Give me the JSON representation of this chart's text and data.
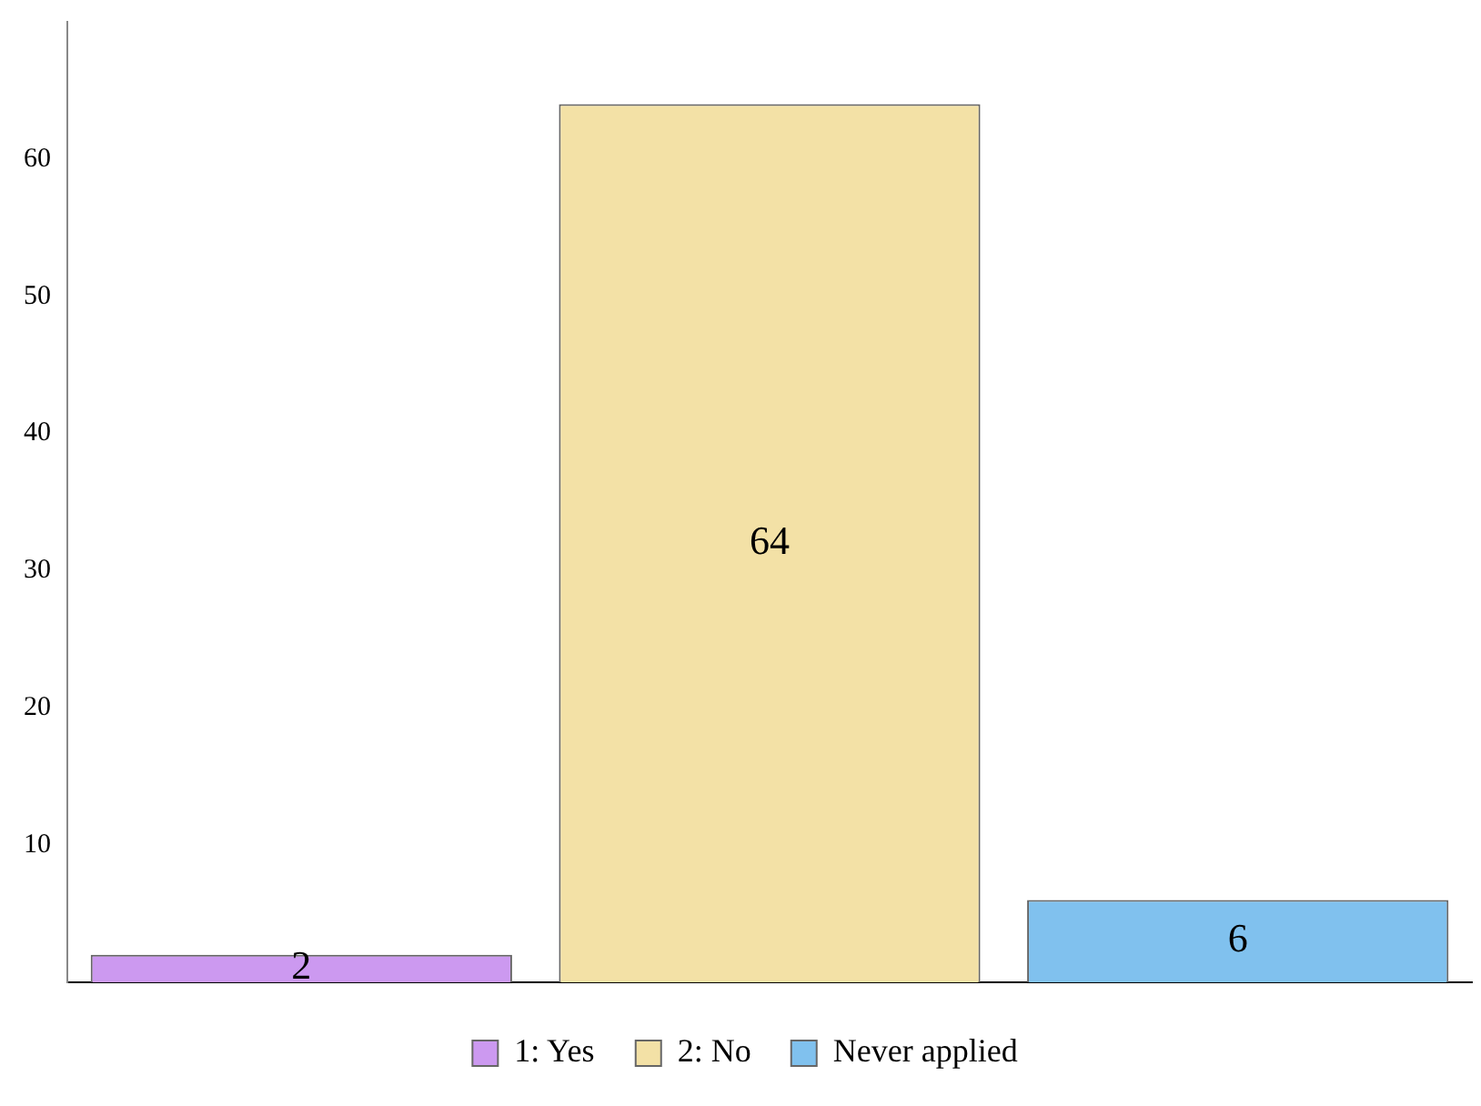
{
  "chart_data": {
    "type": "bar",
    "categories": [
      null,
      null,
      null
    ],
    "series": [
      {
        "name": "1: Yes",
        "color": "#cc99f0",
        "values": [
          2,
          null,
          null
        ]
      },
      {
        "name": "2: No",
        "color": "#f3e1a6",
        "values": [
          null,
          64,
          null
        ]
      },
      {
        "name": "Never applied",
        "color": "#80c1ee",
        "values": [
          null,
          null,
          6
        ]
      }
    ],
    "ylim": [
      0,
      70
    ],
    "yticks": [
      10,
      20,
      30,
      40,
      50,
      60
    ],
    "grid": false,
    "legend": "bottom",
    "data_labels": true
  }
}
